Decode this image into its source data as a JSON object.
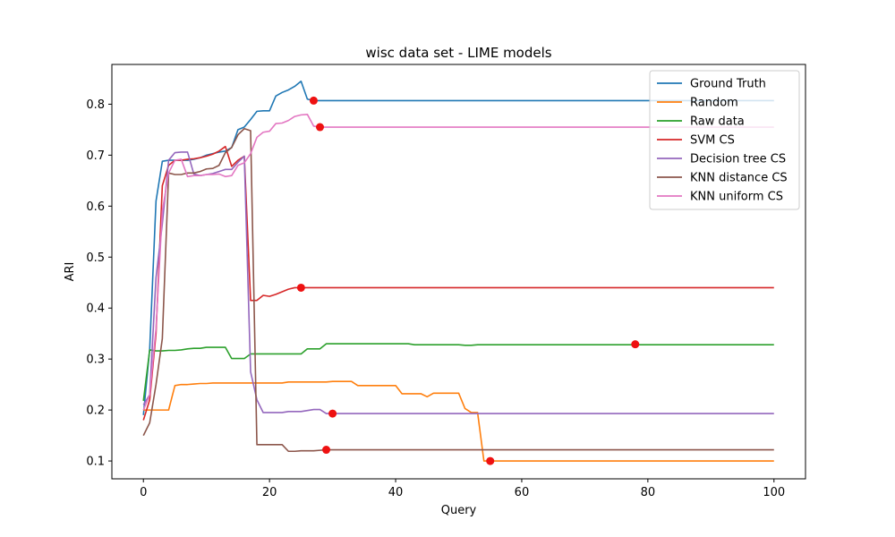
{
  "chart_data": {
    "type": "line",
    "title": "wisc data set - LIME models",
    "xlabel": "Query",
    "ylabel": "ARI",
    "xlim": [
      -5,
      105
    ],
    "ylim": [
      0.065,
      0.878
    ],
    "xticks": [
      0,
      20,
      40,
      60,
      80,
      100
    ],
    "yticks": [
      0.1,
      0.2,
      0.3,
      0.4,
      0.5,
      0.6,
      0.7,
      0.8
    ],
    "grid": false,
    "legend_position": "top-right",
    "series": [
      {
        "name": "Ground Truth",
        "color": "#1f77b4",
        "points": [
          [
            0,
            0.19
          ],
          [
            1,
            0.32
          ],
          [
            2,
            0.61
          ],
          [
            3,
            0.688
          ],
          [
            4,
            0.69
          ],
          [
            5,
            0.69
          ],
          [
            6,
            0.69
          ],
          [
            7,
            0.69
          ],
          [
            8,
            0.692
          ],
          [
            9,
            0.695
          ],
          [
            10,
            0.7
          ],
          [
            11,
            0.703
          ],
          [
            12,
            0.706
          ],
          [
            13,
            0.708
          ],
          [
            14,
            0.715
          ],
          [
            15,
            0.75
          ],
          [
            16,
            0.755
          ],
          [
            17,
            0.77
          ],
          [
            18,
            0.786
          ],
          [
            19,
            0.787
          ],
          [
            20,
            0.787
          ],
          [
            21,
            0.816
          ],
          [
            22,
            0.823
          ],
          [
            23,
            0.828
          ],
          [
            24,
            0.835
          ],
          [
            25,
            0.845
          ],
          [
            26,
            0.81
          ],
          [
            27,
            0.807
          ],
          [
            100,
            0.807
          ]
        ],
        "marker": [
          27,
          0.807
        ]
      },
      {
        "name": "Random",
        "color": "#ff7f0e",
        "points": [
          [
            0,
            0.2
          ],
          [
            1,
            0.2
          ],
          [
            2,
            0.2
          ],
          [
            3,
            0.2
          ],
          [
            4,
            0.2
          ],
          [
            5,
            0.248
          ],
          [
            6,
            0.25
          ],
          [
            7,
            0.25
          ],
          [
            8,
            0.251
          ],
          [
            9,
            0.252
          ],
          [
            10,
            0.252
          ],
          [
            11,
            0.253
          ],
          [
            20,
            0.253
          ],
          [
            22,
            0.253
          ],
          [
            23,
            0.255
          ],
          [
            29,
            0.255
          ],
          [
            30,
            0.256
          ],
          [
            33,
            0.256
          ],
          [
            34,
            0.248
          ],
          [
            40,
            0.248
          ],
          [
            41,
            0.232
          ],
          [
            44,
            0.232
          ],
          [
            45,
            0.226
          ],
          [
            46,
            0.233
          ],
          [
            50,
            0.233
          ],
          [
            51,
            0.203
          ],
          [
            52,
            0.195
          ],
          [
            53,
            0.195
          ],
          [
            54,
            0.1
          ],
          [
            100,
            0.1
          ]
        ],
        "marker": [
          55,
          0.1
        ]
      },
      {
        "name": "Raw data",
        "color": "#2ca02c",
        "points": [
          [
            0,
            0.218
          ],
          [
            1,
            0.318
          ],
          [
            2,
            0.316
          ],
          [
            3,
            0.316
          ],
          [
            4,
            0.317
          ],
          [
            5,
            0.317
          ],
          [
            6,
            0.318
          ],
          [
            7,
            0.32
          ],
          [
            8,
            0.321
          ],
          [
            9,
            0.321
          ],
          [
            10,
            0.323
          ],
          [
            12,
            0.323
          ],
          [
            13,
            0.323
          ],
          [
            14,
            0.301
          ],
          [
            16,
            0.301
          ],
          [
            17,
            0.31
          ],
          [
            25,
            0.31
          ],
          [
            26,
            0.32
          ],
          [
            28,
            0.32
          ],
          [
            29,
            0.33
          ],
          [
            42,
            0.33
          ],
          [
            43,
            0.328
          ],
          [
            50,
            0.328
          ],
          [
            51,
            0.327
          ],
          [
            52,
            0.327
          ],
          [
            53,
            0.328
          ],
          [
            100,
            0.328
          ]
        ],
        "marker": [
          78,
          0.329
        ]
      },
      {
        "name": "SVM CS",
        "color": "#d62728",
        "points": [
          [
            0,
            0.18
          ],
          [
            1,
            0.22
          ],
          [
            2,
            0.35
          ],
          [
            3,
            0.64
          ],
          [
            4,
            0.68
          ],
          [
            5,
            0.69
          ],
          [
            6,
            0.69
          ],
          [
            7,
            0.692
          ],
          [
            8,
            0.693
          ],
          [
            9,
            0.695
          ],
          [
            10,
            0.698
          ],
          [
            11,
            0.702
          ],
          [
            12,
            0.708
          ],
          [
            13,
            0.717
          ],
          [
            14,
            0.678
          ],
          [
            15,
            0.69
          ],
          [
            16,
            0.698
          ],
          [
            17,
            0.415
          ],
          [
            18,
            0.415
          ],
          [
            19,
            0.425
          ],
          [
            20,
            0.423
          ],
          [
            21,
            0.427
          ],
          [
            22,
            0.432
          ],
          [
            23,
            0.437
          ],
          [
            24,
            0.44
          ],
          [
            25,
            0.44
          ],
          [
            100,
            0.44
          ]
        ],
        "marker": [
          25,
          0.44
        ]
      },
      {
        "name": "Decision tree CS",
        "color": "#9467bd",
        "points": [
          [
            0,
            0.21
          ],
          [
            1,
            0.23
          ],
          [
            2,
            0.46
          ],
          [
            3,
            0.565
          ],
          [
            4,
            0.69
          ],
          [
            5,
            0.705
          ],
          [
            6,
            0.706
          ],
          [
            7,
            0.706
          ],
          [
            8,
            0.663
          ],
          [
            9,
            0.66
          ],
          [
            10,
            0.662
          ],
          [
            11,
            0.664
          ],
          [
            12,
            0.668
          ],
          [
            13,
            0.672
          ],
          [
            14,
            0.672
          ],
          [
            15,
            0.686
          ],
          [
            16,
            0.698
          ],
          [
            17,
            0.275
          ],
          [
            18,
            0.22
          ],
          [
            19,
            0.195
          ],
          [
            22,
            0.195
          ],
          [
            23,
            0.197
          ],
          [
            25,
            0.197
          ],
          [
            26,
            0.199
          ],
          [
            27,
            0.201
          ],
          [
            28,
            0.201
          ],
          [
            29,
            0.193
          ],
          [
            100,
            0.193
          ]
        ],
        "marker": [
          30,
          0.193
        ]
      },
      {
        "name": "KNN distance CS",
        "color": "#8c564b",
        "points": [
          [
            0,
            0.15
          ],
          [
            1,
            0.175
          ],
          [
            2,
            0.25
          ],
          [
            3,
            0.34
          ],
          [
            4,
            0.665
          ],
          [
            5,
            0.662
          ],
          [
            6,
            0.662
          ],
          [
            7,
            0.665
          ],
          [
            8,
            0.665
          ],
          [
            9,
            0.668
          ],
          [
            10,
            0.673
          ],
          [
            11,
            0.674
          ],
          [
            12,
            0.68
          ],
          [
            13,
            0.705
          ],
          [
            14,
            0.715
          ],
          [
            15,
            0.74
          ],
          [
            16,
            0.752
          ],
          [
            17,
            0.748
          ],
          [
            18,
            0.132
          ],
          [
            19,
            0.132
          ],
          [
            22,
            0.132
          ],
          [
            23,
            0.119
          ],
          [
            24,
            0.119
          ],
          [
            25,
            0.12
          ],
          [
            27,
            0.12
          ],
          [
            28,
            0.121
          ],
          [
            29,
            0.122
          ],
          [
            100,
            0.122
          ]
        ],
        "marker": [
          29,
          0.122
        ]
      },
      {
        "name": "KNN uniform CS",
        "color": "#e377c2",
        "points": [
          [
            0,
            0.2
          ],
          [
            1,
            0.23
          ],
          [
            2,
            0.36
          ],
          [
            3,
            0.59
          ],
          [
            4,
            0.665
          ],
          [
            5,
            0.69
          ],
          [
            6,
            0.692
          ],
          [
            7,
            0.658
          ],
          [
            8,
            0.66
          ],
          [
            9,
            0.66
          ],
          [
            10,
            0.662
          ],
          [
            11,
            0.662
          ],
          [
            12,
            0.663
          ],
          [
            13,
            0.658
          ],
          [
            14,
            0.66
          ],
          [
            15,
            0.68
          ],
          [
            16,
            0.685
          ],
          [
            17,
            0.703
          ],
          [
            18,
            0.735
          ],
          [
            19,
            0.745
          ],
          [
            20,
            0.747
          ],
          [
            21,
            0.762
          ],
          [
            22,
            0.763
          ],
          [
            23,
            0.768
          ],
          [
            24,
            0.776
          ],
          [
            25,
            0.779
          ],
          [
            26,
            0.78
          ],
          [
            27,
            0.757
          ],
          [
            28,
            0.755
          ],
          [
            100,
            0.755
          ]
        ],
        "marker": [
          28,
          0.755
        ]
      }
    ],
    "marker_color": "#ee1111"
  }
}
